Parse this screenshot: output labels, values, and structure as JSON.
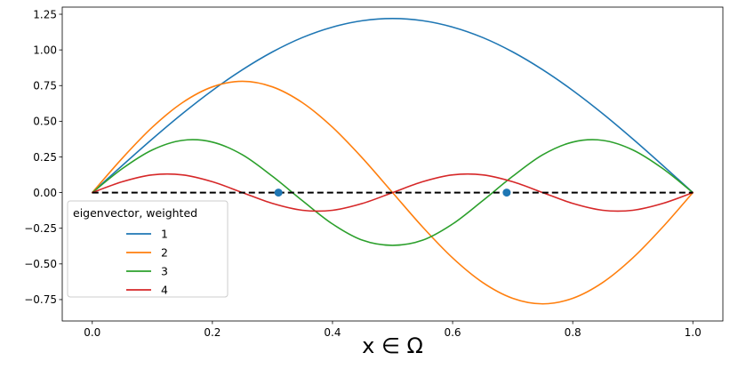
{
  "chart_data": {
    "type": "line",
    "title": "",
    "xlabel": "x ∈ Ω",
    "ylabel": "",
    "xlim": [
      -0.05,
      1.05
    ],
    "ylim": [
      -0.9,
      1.3
    ],
    "xticks": [
      0.0,
      0.2,
      0.4,
      0.6,
      0.8,
      1.0
    ],
    "xtick_labels": [
      "0.0",
      "0.2",
      "0.4",
      "0.6",
      "0.8",
      "1.0"
    ],
    "yticks": [
      -0.75,
      -0.5,
      -0.25,
      0.0,
      0.25,
      0.5,
      0.75,
      1.0,
      1.25
    ],
    "ytick_labels": [
      "−0.75",
      "−0.50",
      "−0.25",
      "0.00",
      "0.25",
      "0.50",
      "0.75",
      "1.00",
      "1.25"
    ],
    "grid": false,
    "legend": {
      "title": "eigenvector, weighted",
      "placement": "lower-left"
    },
    "series": [
      {
        "name": "1",
        "color": "#1f77b4",
        "x": [
          0.0,
          0.05,
          0.1,
          0.15,
          0.2,
          0.25,
          0.3,
          0.35,
          0.4,
          0.45,
          0.5,
          0.55,
          0.6,
          0.65,
          0.7,
          0.75,
          0.8,
          0.85,
          0.9,
          0.95,
          1.0
        ],
        "y": [
          0.0,
          0.19,
          0.376,
          0.553,
          0.716,
          0.861,
          0.986,
          1.087,
          1.16,
          1.205,
          1.22,
          1.205,
          1.16,
          1.087,
          0.986,
          0.861,
          0.716,
          0.553,
          0.376,
          0.19,
          0.0
        ]
      },
      {
        "name": "2",
        "color": "#ff7f0e",
        "x": [
          0.0,
          0.05,
          0.1,
          0.15,
          0.2,
          0.25,
          0.3,
          0.35,
          0.4,
          0.45,
          0.5,
          0.55,
          0.6,
          0.65,
          0.7,
          0.75,
          0.8,
          0.85,
          0.9,
          0.95,
          1.0
        ],
        "y": [
          0.0,
          0.241,
          0.458,
          0.63,
          0.741,
          0.78,
          0.741,
          0.63,
          0.458,
          0.241,
          0.0,
          -0.241,
          -0.458,
          -0.63,
          -0.741,
          -0.78,
          -0.741,
          -0.63,
          -0.458,
          -0.241,
          0.0
        ]
      },
      {
        "name": "3",
        "color": "#2ca02c",
        "x": [
          0.0,
          0.05,
          0.1,
          0.15,
          0.2,
          0.25,
          0.3,
          0.35,
          0.4,
          0.45,
          0.5,
          0.55,
          0.6,
          0.65,
          0.7,
          0.75,
          0.8,
          0.85,
          0.9,
          0.95,
          1.0
        ],
        "y": [
          0.0,
          0.168,
          0.299,
          0.366,
          0.354,
          0.265,
          0.114,
          -0.057,
          -0.22,
          -0.334,
          -0.37,
          -0.334,
          -0.22,
          -0.057,
          0.114,
          0.265,
          0.354,
          0.366,
          0.299,
          0.168,
          0.0
        ]
      },
      {
        "name": "4",
        "color": "#d62728",
        "x": [
          0.0,
          0.05,
          0.1,
          0.15,
          0.2,
          0.25,
          0.3,
          0.35,
          0.4,
          0.45,
          0.5,
          0.55,
          0.6,
          0.65,
          0.7,
          0.75,
          0.8,
          0.85,
          0.9,
          0.95,
          1.0
        ],
        "y": [
          0.0,
          0.076,
          0.124,
          0.124,
          0.076,
          0.0,
          -0.076,
          -0.124,
          -0.124,
          -0.076,
          0.0,
          0.076,
          0.124,
          0.124,
          0.076,
          0.0,
          -0.076,
          -0.124,
          -0.124,
          -0.076,
          0.0
        ]
      }
    ],
    "reference_line": {
      "y": 0.0,
      "x": [
        0.0,
        1.0
      ],
      "color": "#000000",
      "style": "dashed"
    },
    "points": {
      "color": "#1f77b4",
      "x": [
        0.31,
        0.69
      ],
      "y": [
        0.0,
        0.0
      ]
    }
  }
}
